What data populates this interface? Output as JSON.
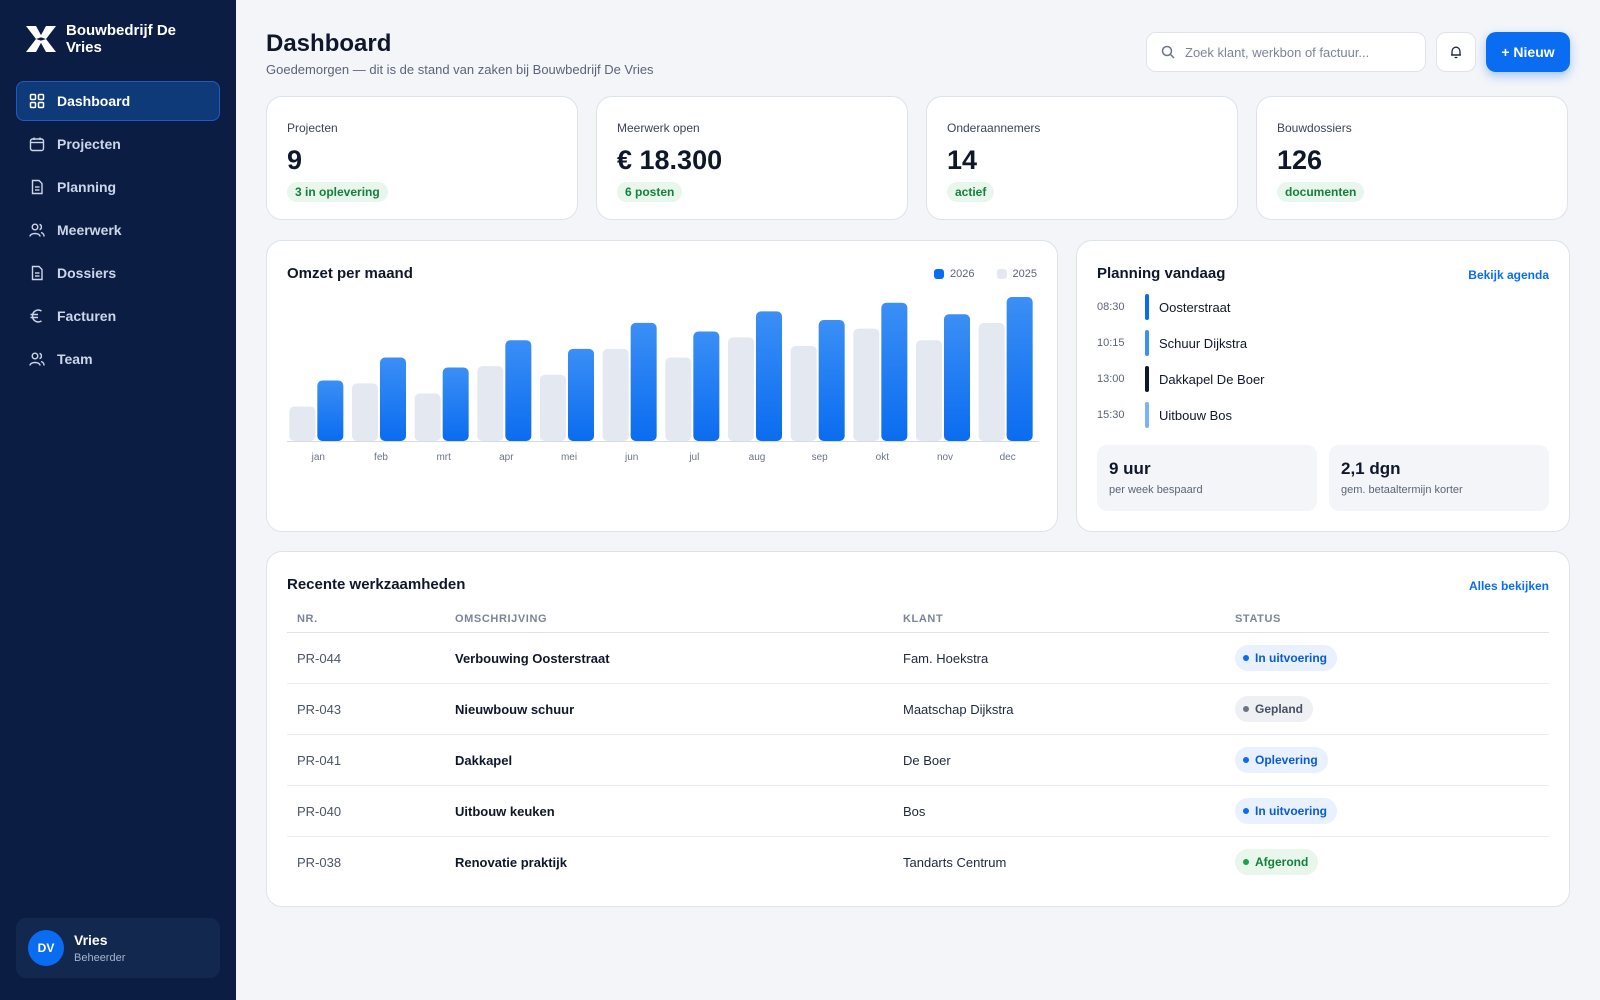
{
  "brand": {
    "name": "Bouwbedrijf De Vries"
  },
  "nav": {
    "items": [
      {
        "label": "Dashboard",
        "icon": "dashboard-icon",
        "active": true
      },
      {
        "label": "Projecten",
        "icon": "calendar-icon"
      },
      {
        "label": "Planning",
        "icon": "document-icon"
      },
      {
        "label": "Meerwerk",
        "icon": "users-icon"
      },
      {
        "label": "Dossiers",
        "icon": "document-icon"
      },
      {
        "label": "Facturen",
        "icon": "euro-icon"
      },
      {
        "label": "Team",
        "icon": "users-icon"
      }
    ]
  },
  "user": {
    "initials": "DV",
    "name": "Vries",
    "role": "Beheerder"
  },
  "header": {
    "title": "Dashboard",
    "subtitle": "Goedemorgen — dit is de stand van zaken bij Bouwbedrijf De Vries",
    "search_placeholder": "Zoek klant, werkbon of factuur...",
    "new_label": "+ Nieuw"
  },
  "kpis": [
    {
      "label": "Projecten",
      "value": "9",
      "badge": "3 in oplevering"
    },
    {
      "label": "Meerwerk open",
      "value": "€ 18.300",
      "badge": "6 posten"
    },
    {
      "label": "Onderaannemers",
      "value": "14",
      "badge": "actief"
    },
    {
      "label": "Bouwdossiers",
      "value": "126",
      "badge": "documenten"
    }
  ],
  "revenue": {
    "title": "Omzet per maand",
    "legend_2026": "2026",
    "legend_2025": "2025"
  },
  "chart_data": {
    "type": "bar",
    "title": "Omzet per maand",
    "categories": [
      "jan",
      "feb",
      "mrt",
      "apr",
      "mei",
      "jun",
      "jul",
      "aug",
      "sep",
      "okt",
      "nov",
      "dec"
    ],
    "series": [
      {
        "name": "2025",
        "color": "#e3e8f1",
        "values": [
          24,
          40,
          33,
          52,
          46,
          64,
          58,
          72,
          66,
          78,
          70,
          82
        ]
      },
      {
        "name": "2026",
        "color": "#0a6cf0",
        "values": [
          42,
          58,
          51,
          70,
          64,
          82,
          76,
          90,
          84,
          96,
          88,
          100
        ]
      }
    ],
    "ylim": [
      0,
      100
    ],
    "grid": false,
    "legend": "top-right"
  },
  "planning": {
    "title": "Planning vandaag",
    "link": "Bekijk agenda",
    "items": [
      {
        "time": "08:30",
        "name": "Oosterstraat",
        "color": "#0a6cf0"
      },
      {
        "time": "10:15",
        "name": "Schuur Dijkstra",
        "color": "#3b8ff5"
      },
      {
        "time": "13:00",
        "name": "Dakkapel De Boer",
        "color": "#0f172a"
      },
      {
        "time": "15:30",
        "name": "Uitbouw Bos",
        "color": "#7ab3f9"
      }
    ],
    "stats": [
      {
        "value": "9 uur",
        "label": "per week bespaard"
      },
      {
        "value": "2,1 dgn",
        "label": "gem. betaaltermijn korter"
      }
    ]
  },
  "recent": {
    "title": "Recente werkzaamheden",
    "link": "Alles bekijken",
    "columns": {
      "nr": "NR.",
      "desc": "OMSCHRIJVING",
      "client": "KLANT",
      "status": "STATUS"
    },
    "rows": [
      {
        "nr": "PR-044",
        "desc": "Verbouwing Oosterstraat",
        "client": "Fam. Hoekstra",
        "status": "In uitvoering",
        "tone": "blue"
      },
      {
        "nr": "PR-043",
        "desc": "Nieuwbouw schuur",
        "client": "Maatschap Dijkstra",
        "status": "Gepland",
        "tone": "gray"
      },
      {
        "nr": "PR-041",
        "desc": "Dakkapel",
        "client": "De Boer",
        "status": "Oplevering",
        "tone": "blue"
      },
      {
        "nr": "PR-040",
        "desc": "Uitbouw keuken",
        "client": "Bos",
        "status": "In uitvoering",
        "tone": "blue"
      },
      {
        "nr": "PR-038",
        "desc": "Renovatie praktijk",
        "client": "Tandarts Centrum",
        "status": "Afgerond",
        "tone": "green"
      }
    ]
  },
  "colors": {
    "accent": "#0a6cf0",
    "sidebar": "#0c1d44",
    "success": "#15803d"
  }
}
